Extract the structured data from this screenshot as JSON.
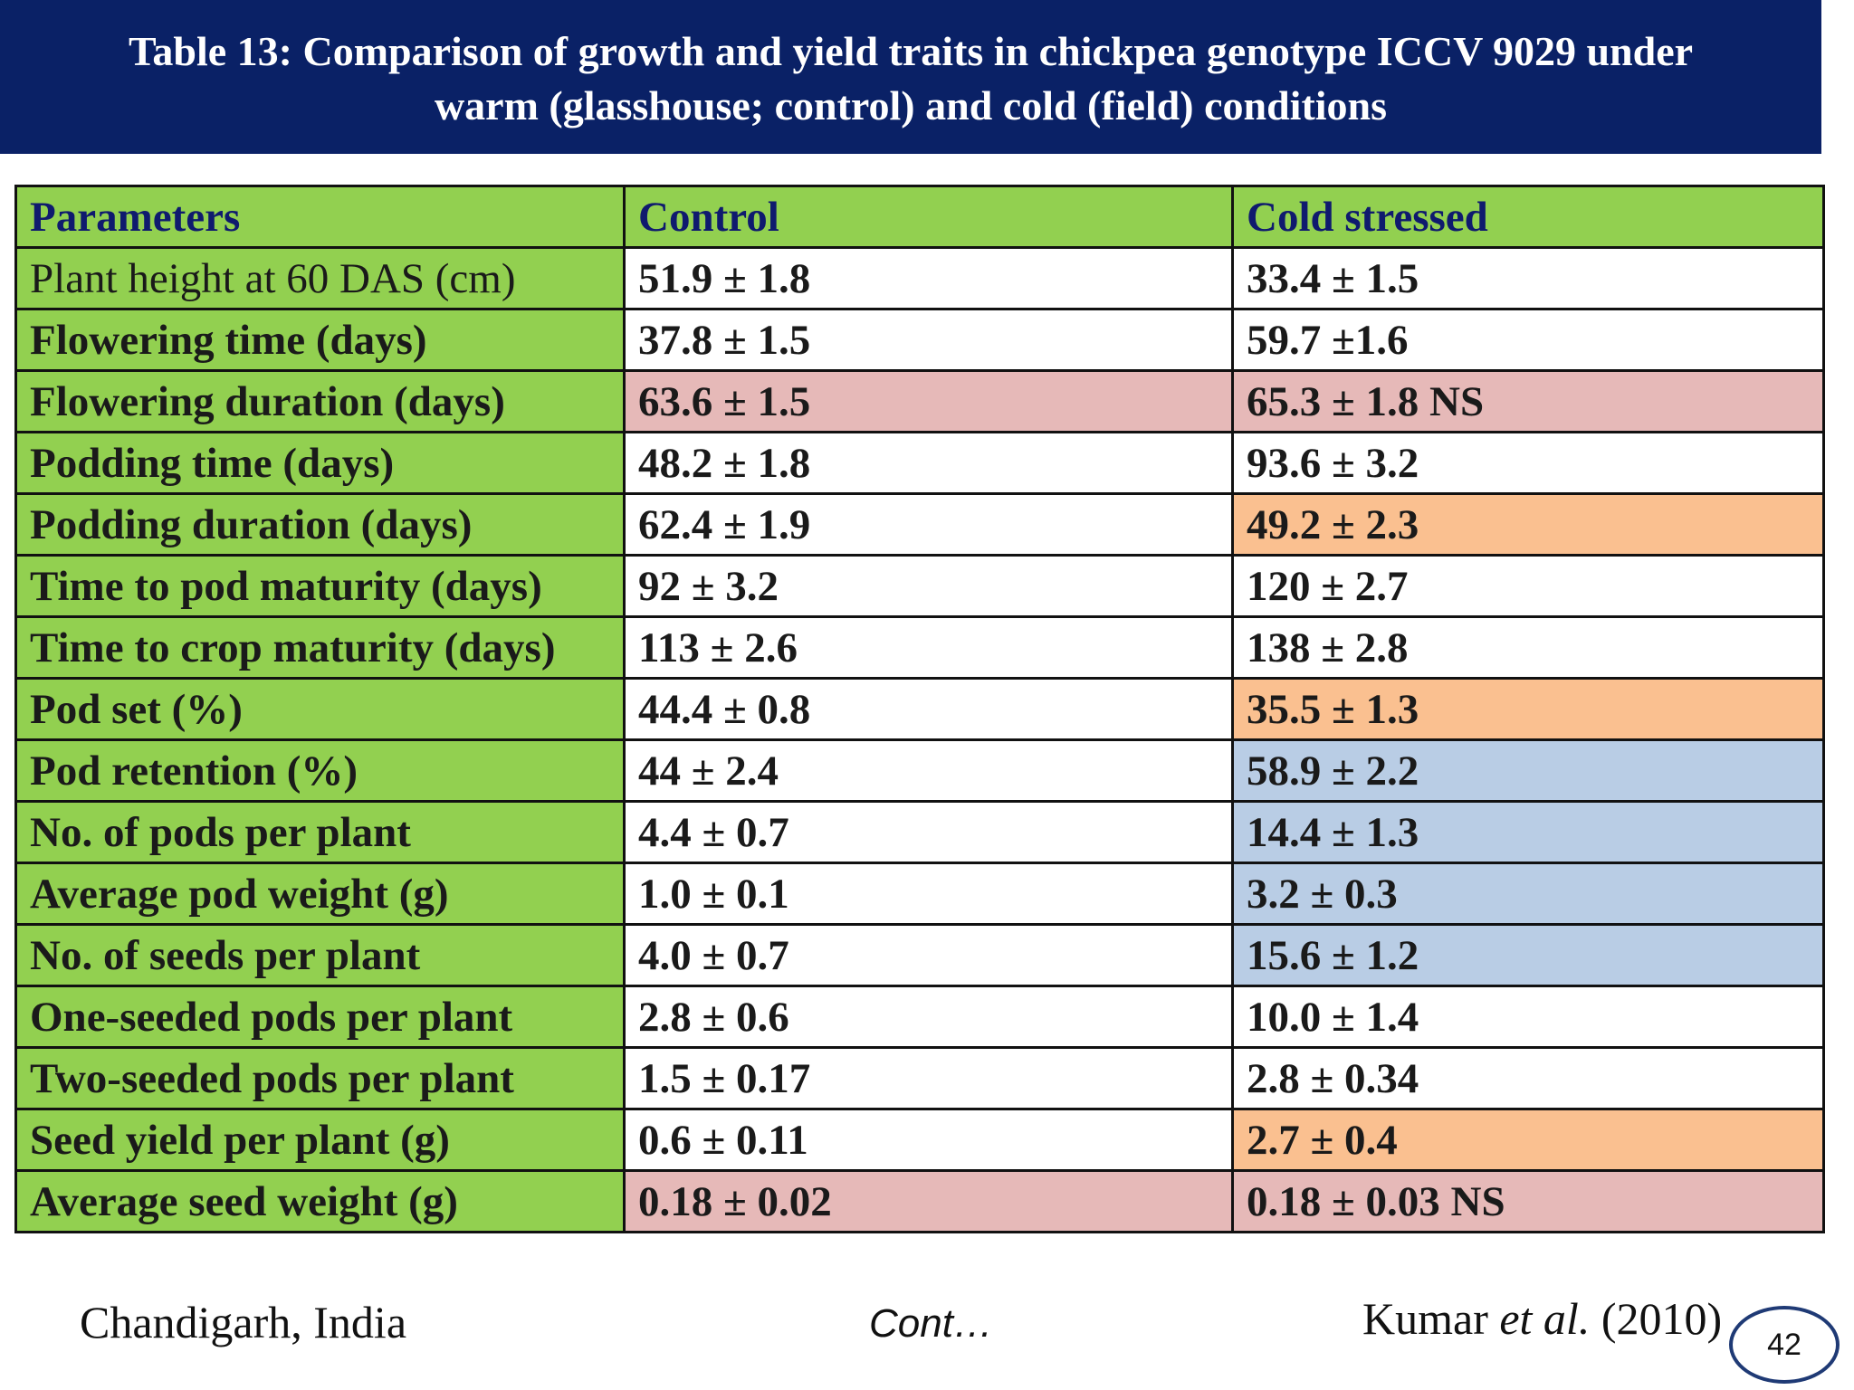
{
  "title": {
    "line1": "Table 13: Comparison of growth and yield traits in chickpea genotype ICCV 9029 under",
    "line2": "warm (glasshouse; control) and cold (field) conditions"
  },
  "table": {
    "headers": [
      "Parameters",
      "Control",
      "Cold stressed"
    ],
    "rows": [
      {
        "parameter": "Plant height at 60 DAS (cm)",
        "control": "51.9 ± 1.8",
        "cold": "33.4 ± 1.5",
        "highlight": "white"
      },
      {
        "parameter": "Flowering time (days)",
        "control": "37.8 ± 1.5",
        "cold": "59.7 ±1.6",
        "highlight": "white"
      },
      {
        "parameter": "Flowering duration (days)",
        "control": "63.6 ± 1.5",
        "cold": "65.3 ± 1.8 NS",
        "highlight": "pink-both"
      },
      {
        "parameter": "Podding time (days)",
        "control": "48.2 ± 1.8",
        "cold": "93.6 ± 3.2",
        "highlight": "white"
      },
      {
        "parameter": "Podding duration (days)",
        "control": "62.4 ± 1.9",
        "cold": "49.2 ± 2.3",
        "highlight": "orange-cold"
      },
      {
        "parameter": "Time to pod maturity (days)",
        "control": "92 ± 3.2",
        "cold": "120 ± 2.7",
        "highlight": "white"
      },
      {
        "parameter": "Time to crop maturity (days)",
        "control": "113 ± 2.6",
        "cold": "138 ± 2.8",
        "highlight": "white"
      },
      {
        "parameter": "Pod set (%)",
        "control": "44.4 ± 0.8",
        "cold": "35.5 ± 1.3",
        "highlight": "orange-cold"
      },
      {
        "parameter": "Pod retention (%)",
        "control": "44 ± 2.4",
        "cold": "58.9 ± 2.2",
        "highlight": "blue-cold"
      },
      {
        "parameter": "No. of pods per plant",
        "control": "4.4 ± 0.7",
        "cold": "14.4 ± 1.3",
        "highlight": "blue-cold"
      },
      {
        "parameter": "Average pod weight (g)",
        "control": "1.0 ± 0.1",
        "cold": "3.2 ± 0.3",
        "highlight": "blue-cold"
      },
      {
        "parameter": "No. of seeds per plant",
        "control": "4.0 ± 0.7",
        "cold": "15.6 ± 1.2",
        "highlight": "blue-cold"
      },
      {
        "parameter": "One-seeded pods per plant",
        "control": "2.8 ± 0.6",
        "cold": "10.0 ± 1.4",
        "highlight": "white"
      },
      {
        "parameter": "Two-seeded pods per plant",
        "control": "1.5 ± 0.17",
        "cold": "2.8 ± 0.34",
        "highlight": "white"
      },
      {
        "parameter": "Seed yield per plant (g)",
        "control": "0.6 ± 0.11",
        "cold": "2.7 ± 0.4",
        "highlight": "orange-cold"
      },
      {
        "parameter": "Average seed weight (g)",
        "control": "0.18 ± 0.02",
        "cold": "0.18 ± 0.03 NS",
        "highlight": "pink-both"
      }
    ]
  },
  "footer": {
    "location": "Chandigarh, India",
    "cont": "Cont…",
    "citation_author": "Kumar ",
    "citation_etal": "et al.",
    "citation_year": " (2010)",
    "page_number": "42"
  },
  "colors": {
    "title_bg": "#0a2166",
    "param_bg": "#92d050",
    "pink": "#e6b9b8",
    "orange": "#fac090",
    "blue": "#b9cde5"
  }
}
